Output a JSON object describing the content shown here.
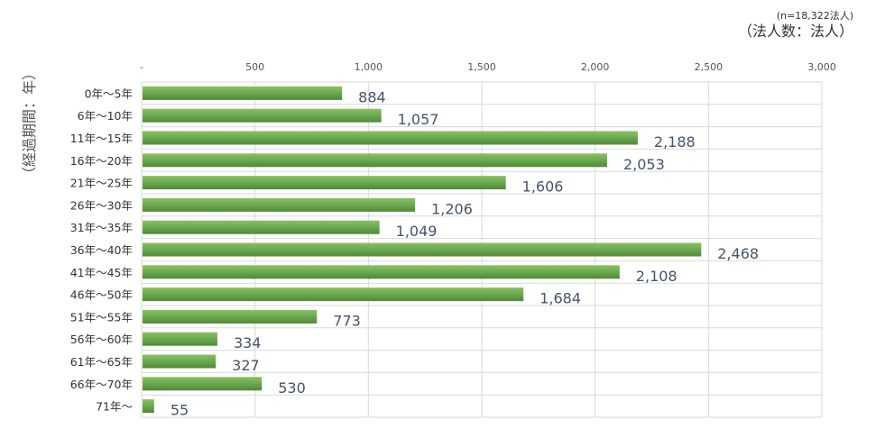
{
  "chart_data": {
    "type": "bar",
    "orientation": "horizontal",
    "note": "(n=18,322法人)",
    "unit_label": "（法人数：法人）",
    "ylabel": "（経過期間：年）",
    "categories": [
      "0年～5年",
      "6年～10年",
      "11年～15年",
      "16年～20年",
      "21年～25年",
      "26年～30年",
      "31年～35年",
      "36年～40年",
      "41年～45年",
      "46年～50年",
      "51年～55年",
      "56年～60年",
      "61年～65年",
      "66年～70年",
      "71年～"
    ],
    "values": [
      884,
      1057,
      2188,
      2053,
      1606,
      1206,
      1049,
      2468,
      2108,
      1684,
      773,
      334,
      327,
      530,
      55
    ],
    "value_labels": [
      "884",
      "1,057",
      "2,188",
      "2,053",
      "1,606",
      "1,206",
      "1,049",
      "2,468",
      "2,108",
      "1,684",
      "773",
      "334",
      "327",
      "530",
      "55"
    ],
    "xlim": [
      0,
      3000
    ],
    "xticks": [
      0,
      500,
      1000,
      1500,
      2000,
      2500,
      3000
    ],
    "xtick_labels": [
      "-",
      "500",
      "1,000",
      "1,500",
      "2,000",
      "2,500",
      "3,000"
    ],
    "bar_color": "#6aa84f",
    "grid": true,
    "legend": "none"
  }
}
